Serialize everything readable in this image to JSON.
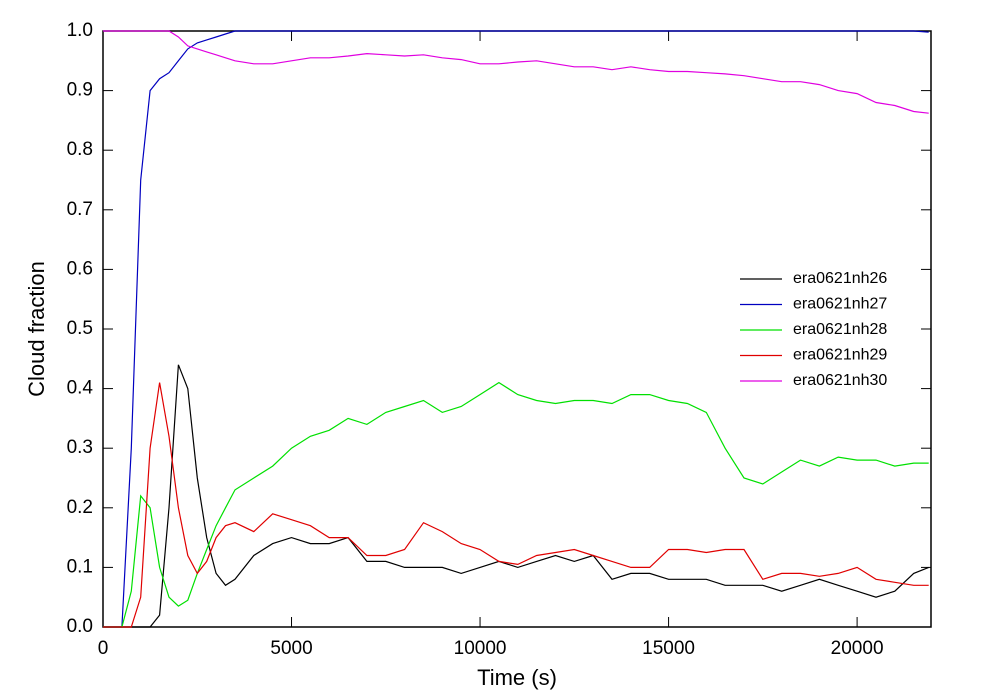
{
  "chart_data": {
    "type": "line",
    "x_label": "Time (s)",
    "y_label": "Cloud fraction",
    "x": [
      0,
      500,
      750,
      1000,
      1250,
      1500,
      1750,
      2000,
      2250,
      2500,
      2750,
      3000,
      3250,
      3500,
      4000,
      4500,
      5000,
      5500,
      6000,
      6500,
      7000,
      7500,
      8000,
      8500,
      9000,
      9500,
      10000,
      10500,
      11000,
      11500,
      12000,
      12500,
      13000,
      13500,
      14000,
      14500,
      15000,
      15500,
      16000,
      16500,
      17000,
      17500,
      18000,
      18500,
      19000,
      19500,
      20000,
      20500,
      21000,
      21500,
      21900
    ],
    "xlim": [
      0,
      21960
    ],
    "xticks": [
      0,
      5000,
      10000,
      15000,
      20000
    ],
    "ylim": [
      0,
      1
    ],
    "yticks": [
      {
        "value": 0,
        "label": "0.0"
      },
      0.1,
      0.2,
      0.3,
      0.4,
      0.5,
      0.6,
      0.7,
      0.8,
      0.9,
      {
        "value": 1,
        "label": "1.0"
      }
    ],
    "legend": "right",
    "series": [
      {
        "name": "era0621nh26",
        "color": "#000000",
        "values": [
          0,
          0,
          0,
          0,
          0,
          0.02,
          0.2,
          0.44,
          0.4,
          0.25,
          0.15,
          0.09,
          0.07,
          0.08,
          0.12,
          0.14,
          0.15,
          0.14,
          0.14,
          0.15,
          0.11,
          0.11,
          0.1,
          0.1,
          0.1,
          0.09,
          0.1,
          0.11,
          0.1,
          0.11,
          0.12,
          0.11,
          0.12,
          0.08,
          0.09,
          0.09,
          0.08,
          0.08,
          0.08,
          0.07,
          0.07,
          0.07,
          0.06,
          0.07,
          0.08,
          0.07,
          0.06,
          0.05,
          0.06,
          0.09,
          0.1
        ]
      },
      {
        "name": "era0621nh27",
        "color": "#0000c0",
        "values": [
          0,
          0,
          0.3,
          0.75,
          0.9,
          0.92,
          0.93,
          0.95,
          0.97,
          0.98,
          0.985,
          0.99,
          0.995,
          1,
          1,
          1,
          1,
          1,
          1,
          1,
          1,
          1,
          1,
          1,
          1,
          1,
          1,
          1,
          1,
          1,
          1,
          1,
          1,
          1,
          1,
          1,
          1,
          1,
          1,
          1,
          1,
          1,
          1,
          1,
          1,
          1,
          1,
          1,
          1,
          1,
          0.998
        ]
      },
      {
        "name": "era0621nh28",
        "color": "#00e000",
        "values": [
          0,
          0,
          0.06,
          0.22,
          0.2,
          0.1,
          0.05,
          0.035,
          0.045,
          0.09,
          0.13,
          0.17,
          0.2,
          0.23,
          0.25,
          0.27,
          0.3,
          0.32,
          0.33,
          0.35,
          0.34,
          0.36,
          0.37,
          0.38,
          0.36,
          0.37,
          0.39,
          0.41,
          0.39,
          0.38,
          0.375,
          0.38,
          0.38,
          0.375,
          0.39,
          0.39,
          0.38,
          0.375,
          0.36,
          0.3,
          0.25,
          0.24,
          0.26,
          0.28,
          0.27,
          0.285,
          0.28,
          0.28,
          0.27,
          0.275,
          0.275
        ]
      },
      {
        "name": "era0621nh29",
        "color": "#e00000",
        "values": [
          0,
          0,
          0,
          0.05,
          0.3,
          0.41,
          0.32,
          0.2,
          0.12,
          0.09,
          0.11,
          0.15,
          0.17,
          0.175,
          0.16,
          0.19,
          0.18,
          0.17,
          0.15,
          0.15,
          0.12,
          0.12,
          0.13,
          0.175,
          0.16,
          0.14,
          0.13,
          0.11,
          0.105,
          0.12,
          0.125,
          0.13,
          0.12,
          0.11,
          0.1,
          0.1,
          0.13,
          0.13,
          0.125,
          0.13,
          0.13,
          0.08,
          0.09,
          0.09,
          0.085,
          0.09,
          0.1,
          0.08,
          0.075,
          0.07,
          0.07
        ]
      },
      {
        "name": "era0621nh30",
        "color": "#e000e0",
        "values": [
          1,
          1,
          1,
          1,
          1,
          1,
          1,
          0.99,
          0.975,
          0.97,
          0.965,
          0.96,
          0.955,
          0.95,
          0.945,
          0.945,
          0.95,
          0.955,
          0.955,
          0.958,
          0.962,
          0.96,
          0.958,
          0.96,
          0.955,
          0.952,
          0.945,
          0.945,
          0.948,
          0.95,
          0.945,
          0.94,
          0.94,
          0.935,
          0.94,
          0.935,
          0.932,
          0.932,
          0.93,
          0.928,
          0.925,
          0.92,
          0.915,
          0.915,
          0.91,
          0.9,
          0.895,
          0.88,
          0.875,
          0.865,
          0.862
        ]
      }
    ]
  }
}
